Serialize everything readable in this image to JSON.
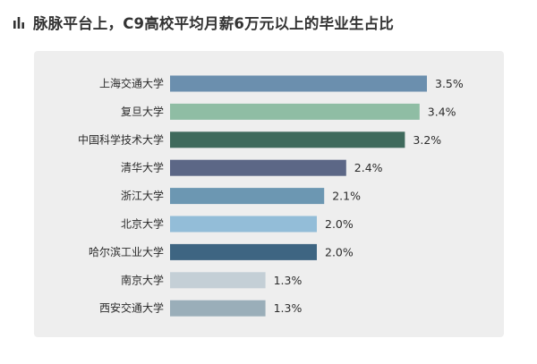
{
  "header": {
    "title": "脉脉平台上，C9高校平均月薪6万元以上的毕业生占比",
    "icon": "bar-chart-icon",
    "icon_color": "#333333"
  },
  "chart_data": {
    "type": "bar",
    "orientation": "horizontal",
    "title": "脉脉平台上，C9高校平均月薪6万元以上的毕业生占比",
    "categories": [
      "上海交通大学",
      "复旦大学",
      "中国科学技术大学",
      "清华大学",
      "浙江大学",
      "北京大学",
      "哈尔滨工业大学",
      "南京大学",
      "西安交通大学"
    ],
    "values": [
      3.5,
      3.4,
      3.2,
      2.4,
      2.1,
      2.0,
      2.0,
      1.3,
      1.3
    ],
    "value_labels": [
      "3.5%",
      "3.4%",
      "3.2%",
      "2.4%",
      "2.1%",
      "2.0%",
      "2.0%",
      "1.3%",
      "1.3%"
    ],
    "colors": [
      "#6b8fae",
      "#8fbda4",
      "#3f6a5c",
      "#5c6786",
      "#6c97b2",
      "#93bdd8",
      "#3e6582",
      "#c4cfd6",
      "#9aaeb9"
    ],
    "unit": "%",
    "xlim": [
      0,
      3.5
    ],
    "grid": false,
    "background": "#eeeeee"
  }
}
